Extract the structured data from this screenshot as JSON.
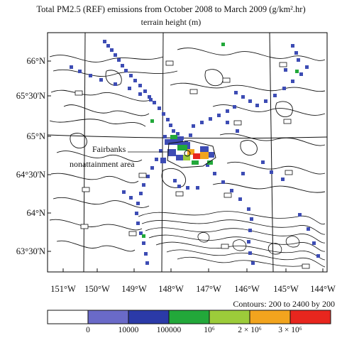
{
  "title": {
    "line1": "Total PM2.5 (REF) emissions from October 2008 to March 2009 (g/km².hr)",
    "line2": "terrain height (m)"
  },
  "lat_labels": [
    "66°N",
    "65°30'N",
    "65°N",
    "64°30'N",
    "64°N",
    "63°30'N"
  ],
  "lon_labels": [
    "151°W",
    "150°W",
    "149°W",
    "148°W",
    "147°W",
    "146°W",
    "145°W",
    "144°W"
  ],
  "annotation": {
    "line1": "Fairbanks",
    "line2": "nonattainment area"
  },
  "contours_note": "Contours: 200 to 2400 by 200",
  "colorbar": {
    "colors": [
      "#ffffff",
      "#6a6ac8",
      "#2b3aa8",
      "#22a83a",
      "#9ccc3a",
      "#f2a41e",
      "#e8261e"
    ],
    "tick_labels": [
      "0",
      "10000",
      "100000",
      "10⁶",
      "2 × 10⁶",
      "3 × 10⁶"
    ]
  }
}
